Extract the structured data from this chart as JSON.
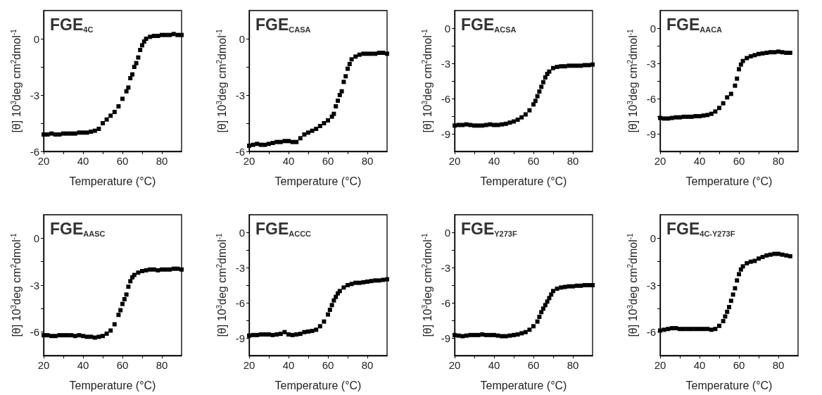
{
  "chart_data": [
    {
      "type": "scatter",
      "title": "FGE$_{4C}$",
      "xlabel": "Temperature (°C)",
      "ylabel": "[θ] 10$^{3}$deg cm$^{2}$dmol$^{-1}$",
      "marker": "square",
      "color": "#000000",
      "xlim": [
        20,
        90
      ],
      "xticks": [
        20,
        {
          "value": 30,
          "label": null
        },
        40,
        {
          "value": 50,
          "label": null
        },
        60,
        {
          "value": 70,
          "label": null
        },
        80
      ],
      "ylim": [
        -6,
        1.5
      ],
      "yticks": [
        -6,
        {
          "value": -4.5,
          "label": null
        },
        -3,
        {
          "value": -1.5,
          "label": null
        },
        0
      ],
      "x": [
        20,
        22,
        24,
        26,
        28,
        30,
        32,
        34,
        36,
        38,
        40,
        42,
        44,
        46,
        48,
        50,
        52,
        54,
        56,
        58,
        60,
        62,
        63,
        64,
        65,
        66,
        67,
        68,
        69,
        70,
        71,
        72,
        74,
        76,
        78,
        80,
        82,
        84,
        86,
        88,
        90
      ],
      "values": [
        -5.1,
        -5.1,
        -5.05,
        -5.1,
        -5.1,
        -5.05,
        -5.05,
        -5.05,
        -5.05,
        -5,
        -5,
        -5,
        -4.95,
        -4.9,
        -4.8,
        -4.5,
        -4.3,
        -4.1,
        -3.9,
        -3.6,
        -3.2,
        -2.8,
        -2.6,
        -2.1,
        -1.9,
        -1.5,
        -1.3,
        -1,
        -0.6,
        -0.35,
        -0.15,
        0,
        0.1,
        0.15,
        0.15,
        0.2,
        0.2,
        0.2,
        0.25,
        0.2,
        0.2
      ]
    },
    {
      "type": "scatter",
      "title": "FGE$_{CASA}$",
      "xlabel": "Temperature (°C)",
      "ylabel": "[θ] 10$^{3}$deg cm$^{2}$dmol$^{-1}$",
      "marker": "square",
      "color": "#000000",
      "xlim": [
        20,
        90
      ],
      "xticks": [
        20,
        {
          "value": 30,
          "label": null
        },
        40,
        {
          "value": 50,
          "label": null
        },
        60,
        {
          "value": 70,
          "label": null
        },
        80
      ],
      "ylim": [
        -6,
        1.5
      ],
      "yticks": [
        -6,
        {
          "value": -4.5,
          "label": null
        },
        -3,
        {
          "value": -1.5,
          "label": null
        },
        0
      ],
      "x": [
        20,
        22,
        24,
        26,
        28,
        30,
        32,
        34,
        36,
        38,
        40,
        42,
        44,
        46,
        48,
        50,
        52,
        54,
        56,
        58,
        60,
        62,
        63,
        64,
        65,
        66,
        67,
        68,
        69,
        70,
        71,
        72,
        74,
        76,
        78,
        80,
        82,
        84,
        86,
        88,
        90
      ],
      "values": [
        -5.7,
        -5.65,
        -5.6,
        -5.65,
        -5.65,
        -5.6,
        -5.55,
        -5.5,
        -5.5,
        -5.45,
        -5.45,
        -5.5,
        -5.5,
        -5.3,
        -5.1,
        -5,
        -4.9,
        -4.8,
        -4.65,
        -4.5,
        -4.35,
        -4.15,
        -4,
        -3.6,
        -3.3,
        -3,
        -2.8,
        -2.3,
        -2,
        -1.6,
        -1.35,
        -1.1,
        -0.95,
        -0.85,
        -0.8,
        -0.8,
        -0.8,
        -0.8,
        -0.75,
        -0.75,
        -0.8
      ]
    },
    {
      "type": "scatter",
      "title": "FGE$_{ACSA}$",
      "xlabel": "Temperature (°C)",
      "ylabel": "[θ] 10$^{3}$deg cm$^{2}$dmol$^{-1}$",
      "marker": "square",
      "color": "#000000",
      "xlim": [
        20,
        90
      ],
      "xticks": [
        20,
        {
          "value": 30,
          "label": null
        },
        40,
        {
          "value": 50,
          "label": null
        },
        60,
        {
          "value": 70,
          "label": null
        },
        80
      ],
      "ylim": [
        -10.5,
        1.5
      ],
      "yticks": [
        -9,
        {
          "value": -7.5,
          "label": null
        },
        -6,
        {
          "value": -4.5,
          "label": null
        },
        -3,
        {
          "value": -1.5,
          "label": null
        },
        0
      ],
      "x": [
        20,
        22,
        24,
        26,
        28,
        30,
        32,
        34,
        36,
        38,
        40,
        42,
        44,
        46,
        48,
        50,
        52,
        54,
        56,
        58,
        60,
        61,
        62,
        63,
        64,
        65,
        66,
        67,
        68,
        70,
        72,
        74,
        76,
        78,
        80,
        82,
        84,
        86,
        88,
        90
      ],
      "values": [
        -8.3,
        -8.25,
        -8.25,
        -8.2,
        -8.25,
        -8.3,
        -8.3,
        -8.3,
        -8.25,
        -8.2,
        -8.25,
        -8.25,
        -8.2,
        -8.15,
        -8.05,
        -7.95,
        -7.8,
        -7.6,
        -7.35,
        -7,
        -6.5,
        -6.2,
        -5.8,
        -5.4,
        -5,
        -4.6,
        -4.2,
        -3.9,
        -3.7,
        -3.4,
        -3.3,
        -3.25,
        -3.25,
        -3.2,
        -3.2,
        -3.2,
        -3.2,
        -3.15,
        -3.15,
        -3.1
      ]
    },
    {
      "type": "scatter",
      "title": "FGE$_{AACA}$",
      "xlabel": "Temperature (°C)",
      "ylabel": "[θ] 10$^{3}$deg cm$^{2}$dmol$^{-1}$",
      "marker": "square",
      "color": "#000000",
      "xlim": [
        20,
        90
      ],
      "xticks": [
        20,
        {
          "value": 30,
          "label": null
        },
        40,
        {
          "value": 50,
          "label": null
        },
        60,
        {
          "value": 70,
          "label": null
        },
        80
      ],
      "ylim": [
        -10.5,
        1.5
      ],
      "yticks": [
        -9,
        {
          "value": -7.5,
          "label": null
        },
        -6,
        {
          "value": -4.5,
          "label": null
        },
        -3,
        {
          "value": -1.5,
          "label": null
        },
        0
      ],
      "x": [
        20,
        22,
        24,
        26,
        28,
        30,
        32,
        34,
        36,
        38,
        40,
        42,
        44,
        46,
        48,
        50,
        52,
        54,
        56,
        58,
        59,
        60,
        61,
        62,
        64,
        66,
        68,
        70,
        72,
        74,
        76,
        78,
        80,
        82,
        84,
        86
      ],
      "values": [
        -7.65,
        -7.7,
        -7.7,
        -7.65,
        -7.6,
        -7.6,
        -7.55,
        -7.55,
        -7.55,
        -7.5,
        -7.5,
        -7.45,
        -7.4,
        -7.3,
        -7.1,
        -6.8,
        -6.4,
        -5.9,
        -5.6,
        -4.9,
        -4.3,
        -3.5,
        -3.1,
        -2.8,
        -2.55,
        -2.4,
        -2.3,
        -2.2,
        -2.15,
        -2.1,
        -2.05,
        -2.05,
        -2,
        -2.05,
        -2.1,
        -2.1
      ]
    },
    {
      "type": "scatter",
      "title": "FGE$_{AASC}$",
      "xlabel": "Temperature (°C)",
      "ylabel": "[θ] 10$^{3}$deg cm$^{2}$dmol$^{-1}$",
      "marker": "square",
      "color": "#000000",
      "xlim": [
        20,
        90
      ],
      "xticks": [
        20,
        {
          "value": 30,
          "label": null
        },
        40,
        {
          "value": 50,
          "label": null
        },
        60,
        {
          "value": 70,
          "label": null
        },
        80
      ],
      "ylim": [
        -7.5,
        1.5
      ],
      "yticks": [
        -6,
        {
          "value": -4.5,
          "label": null
        },
        -3,
        {
          "value": -1.5,
          "label": null
        },
        0
      ],
      "x": [
        20,
        22,
        24,
        26,
        28,
        30,
        32,
        34,
        36,
        38,
        40,
        42,
        44,
        46,
        48,
        50,
        52,
        54,
        56,
        58,
        59,
        60,
        61,
        62,
        63,
        64,
        65,
        66,
        68,
        70,
        72,
        74,
        76,
        78,
        80,
        82,
        84,
        86,
        88,
        90
      ],
      "values": [
        -6.2,
        -6.2,
        -6.25,
        -6.25,
        -6.2,
        -6.2,
        -6.2,
        -6.2,
        -6.25,
        -6.2,
        -6.25,
        -6.3,
        -6.3,
        -6.35,
        -6.3,
        -6.25,
        -6.1,
        -5.9,
        -5.5,
        -4.9,
        -4.6,
        -4.2,
        -3.9,
        -3.6,
        -3.1,
        -2.75,
        -2.5,
        -2.35,
        -2.2,
        -2.1,
        -2.05,
        -2,
        -2,
        -2.05,
        -2,
        -2,
        -2,
        -1.95,
        -1.95,
        -2
      ]
    },
    {
      "type": "scatter",
      "title": "FGE$_{ACCC}$",
      "xlabel": "Temperature (°C)",
      "ylabel": "[θ] 10$^{3}$deg cm$^{2}$dmol$^{-1}$",
      "marker": "square",
      "color": "#000000",
      "xlim": [
        20,
        90
      ],
      "xticks": [
        20,
        {
          "value": 30,
          "label": null
        },
        40,
        {
          "value": 50,
          "label": null
        },
        60,
        {
          "value": 70,
          "label": null
        },
        80
      ],
      "ylim": [
        -10.5,
        1.5
      ],
      "yticks": [
        -9,
        {
          "value": -7.5,
          "label": null
        },
        -6,
        {
          "value": -4.5,
          "label": null
        },
        -3,
        {
          "value": -1.5,
          "label": null
        },
        0
      ],
      "x": [
        20,
        22,
        24,
        26,
        28,
        30,
        32,
        34,
        36,
        38,
        40,
        42,
        44,
        46,
        48,
        50,
        52,
        54,
        56,
        58,
        60,
        61,
        62,
        63,
        64,
        65,
        66,
        68,
        70,
        72,
        74,
        76,
        78,
        80,
        82,
        84,
        86,
        88,
        90
      ],
      "values": [
        -8.8,
        -8.75,
        -8.75,
        -8.7,
        -8.7,
        -8.7,
        -8.75,
        -8.7,
        -8.65,
        -8.5,
        -8.7,
        -8.75,
        -8.7,
        -8.65,
        -8.5,
        -8.45,
        -8.4,
        -8.3,
        -8,
        -7.6,
        -7,
        -6.6,
        -6.2,
        -5.8,
        -5.5,
        -5.2,
        -5,
        -4.7,
        -4.5,
        -4.4,
        -4.3,
        -4.3,
        -4.25,
        -4.2,
        -4.15,
        -4.1,
        -4.1,
        -4.05,
        -4
      ]
    },
    {
      "type": "scatter",
      "title": "FGE$_{Y273F}$",
      "xlabel": "Temperature (°C)",
      "ylabel": "[θ] 10$^{3}$deg cm$^{2}$dmol$^{-1}$",
      "marker": "square",
      "color": "#000000",
      "xlim": [
        20,
        90
      ],
      "xticks": [
        20,
        {
          "value": 30,
          "label": null
        },
        40,
        {
          "value": 50,
          "label": null
        },
        60,
        {
          "value": 70,
          "label": null
        },
        80
      ],
      "ylim": [
        -10.5,
        1.5
      ],
      "yticks": [
        -9,
        {
          "value": -7.5,
          "label": null
        },
        -6,
        {
          "value": -4.5,
          "label": null
        },
        -3,
        {
          "value": -1.5,
          "label": null
        },
        0
      ],
      "x": [
        20,
        22,
        24,
        26,
        28,
        30,
        32,
        34,
        36,
        38,
        40,
        42,
        44,
        46,
        48,
        50,
        52,
        54,
        56,
        58,
        60,
        62,
        63,
        64,
        65,
        66,
        67,
        68,
        69,
        70,
        72,
        74,
        76,
        78,
        80,
        82,
        84,
        86,
        88,
        90
      ],
      "values": [
        -8.75,
        -8.8,
        -8.85,
        -8.8,
        -8.75,
        -8.75,
        -8.75,
        -8.7,
        -8.75,
        -8.75,
        -8.75,
        -8.8,
        -8.85,
        -8.85,
        -8.8,
        -8.75,
        -8.7,
        -8.6,
        -8.5,
        -8.3,
        -8,
        -7.6,
        -7.2,
        -6.8,
        -6.5,
        -6.2,
        -5.9,
        -5.6,
        -5.3,
        -5,
        -4.8,
        -4.7,
        -4.65,
        -4.6,
        -4.6,
        -4.55,
        -4.55,
        -4.5,
        -4.5,
        -4.5
      ]
    },
    {
      "type": "scatter",
      "title": "FGE$_{4C-Y273F}$",
      "xlabel": "Temperature (°C)",
      "ylabel": "[θ] 10$^{3}$deg cm$^{2}$dmol$^{-1}$",
      "marker": "square",
      "color": "#000000",
      "xlim": [
        20,
        90
      ],
      "xticks": [
        20,
        {
          "value": 30,
          "label": null
        },
        40,
        {
          "value": 50,
          "label": null
        },
        60,
        {
          "value": 70,
          "label": null
        },
        80
      ],
      "ylim": [
        -7.5,
        1.5
      ],
      "yticks": [
        -6,
        {
          "value": -4.5,
          "label": null
        },
        -3,
        {
          "value": -1.5,
          "label": null
        },
        0
      ],
      "x": [
        20,
        22,
        24,
        26,
        28,
        30,
        32,
        34,
        36,
        38,
        40,
        42,
        44,
        46,
        48,
        50,
        52,
        53,
        54,
        55,
        56,
        57,
        58,
        59,
        60,
        61,
        62,
        64,
        66,
        68,
        70,
        72,
        74,
        76,
        78,
        80,
        82,
        84,
        86
      ],
      "values": [
        -5.9,
        -5.85,
        -5.8,
        -5.75,
        -5.75,
        -5.8,
        -5.8,
        -5.8,
        -5.8,
        -5.8,
        -5.8,
        -5.8,
        -5.8,
        -5.85,
        -5.8,
        -5.6,
        -5.3,
        -5,
        -4.7,
        -4.4,
        -4,
        -3.6,
        -3.2,
        -2.7,
        -2.3,
        -2,
        -1.8,
        -1.6,
        -1.5,
        -1.45,
        -1.3,
        -1.2,
        -1.1,
        -1.05,
        -1,
        -1,
        -1.05,
        -1.1,
        -1.15
      ]
    }
  ]
}
